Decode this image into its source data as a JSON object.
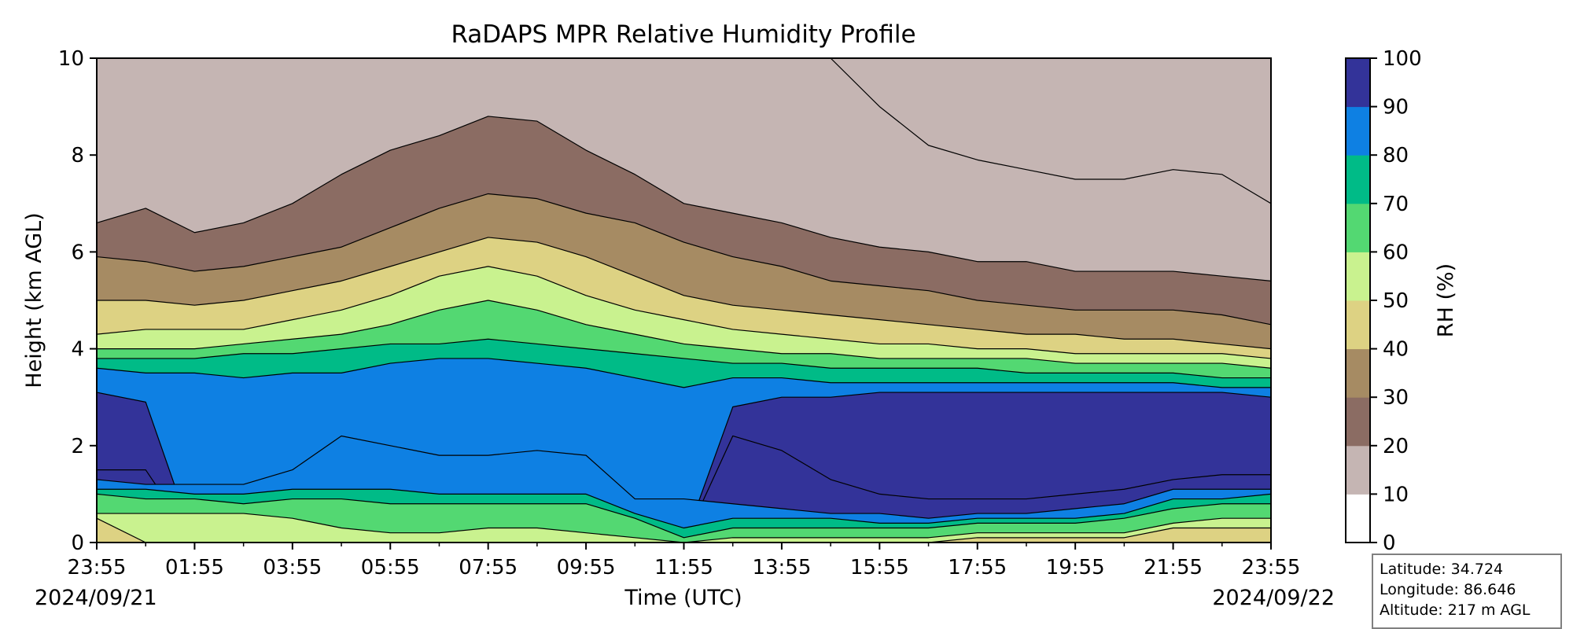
{
  "chart_data": {
    "type": "contourf",
    "title": "RaDAPS MPR Relative Humidity Profile",
    "xlabel": "Time (UTC)",
    "ylabel": "Height (km AGL)",
    "ylim": [
      0,
      10
    ],
    "xlim": [
      "2024-09-21 23:55",
      "2024-09-22 23:55"
    ],
    "x_ticks": [
      "23:55",
      "01:55",
      "03:55",
      "05:55",
      "07:55",
      "09:55",
      "11:55",
      "13:55",
      "15:55",
      "17:55",
      "19:55",
      "21:55",
      "23:55"
    ],
    "y_ticks": [
      "0",
      "2",
      "4",
      "6",
      "8",
      "10"
    ],
    "date_start": "2024/09/21",
    "date_end": "2024/09/22",
    "colorbar": {
      "label": "RH (%)",
      "ticks": [
        "0",
        "10",
        "20",
        "30",
        "40",
        "50",
        "60",
        "70",
        "80",
        "90",
        "100"
      ],
      "colors": [
        "#ffffff",
        "#c5b5b3",
        "#8b6c63",
        "#a68b63",
        "#ddd283",
        "#c9f28f",
        "#53d872",
        "#00bb87",
        "#0e80e3",
        "#333399"
      ]
    },
    "grid": false,
    "hours": [
      0,
      1,
      2,
      3,
      4,
      5,
      6,
      7,
      8,
      9,
      10,
      11,
      12,
      13,
      14,
      15,
      16,
      17,
      18,
      19,
      20,
      21,
      22,
      23,
      24
    ],
    "contour_heights_km": [
      {
        "level": 10,
        "heights": [
          10,
          10,
          10,
          10,
          10,
          10,
          10,
          10,
          10,
          10,
          10,
          10,
          10,
          10,
          10,
          10,
          9.0,
          8.2,
          7.9,
          7.7,
          7.5,
          7.5,
          7.7,
          7.6,
          7.0
        ]
      },
      {
        "level": 20,
        "heights": [
          6.6,
          6.9,
          6.4,
          6.6,
          7.0,
          7.6,
          8.1,
          8.4,
          8.8,
          8.7,
          8.1,
          7.6,
          7.0,
          6.8,
          6.6,
          6.3,
          6.1,
          6.0,
          5.8,
          5.8,
          5.6,
          5.6,
          5.6,
          5.5,
          5.4
        ]
      },
      {
        "level": 30,
        "heights": [
          5.9,
          5.8,
          5.6,
          5.7,
          5.9,
          6.1,
          6.5,
          6.9,
          7.2,
          7.1,
          6.8,
          6.6,
          6.2,
          5.9,
          5.7,
          5.4,
          5.3,
          5.2,
          5.0,
          4.9,
          4.8,
          4.8,
          4.8,
          4.7,
          4.5
        ]
      },
      {
        "level": 40,
        "heights": [
          5.0,
          5.0,
          4.9,
          5.0,
          5.2,
          5.4,
          5.7,
          6.0,
          6.3,
          6.2,
          5.9,
          5.5,
          5.1,
          4.9,
          4.8,
          4.7,
          4.6,
          4.5,
          4.4,
          4.3,
          4.3,
          4.2,
          4.2,
          4.1,
          4.0
        ]
      },
      {
        "level": 50,
        "heights": [
          4.3,
          4.4,
          4.4,
          4.4,
          4.6,
          4.8,
          5.1,
          5.5,
          5.7,
          5.5,
          5.1,
          4.8,
          4.6,
          4.4,
          4.3,
          4.2,
          4.1,
          4.1,
          4.0,
          4.0,
          3.9,
          3.9,
          3.9,
          3.9,
          3.8
        ]
      },
      {
        "level": 60,
        "heights": [
          4.0,
          4.0,
          4.0,
          4.1,
          4.2,
          4.3,
          4.5,
          4.8,
          5.0,
          4.8,
          4.5,
          4.3,
          4.1,
          4.0,
          3.9,
          3.9,
          3.8,
          3.8,
          3.8,
          3.8,
          3.7,
          3.7,
          3.7,
          3.7,
          3.6
        ]
      },
      {
        "level": 70,
        "heights": [
          3.8,
          3.8,
          3.8,
          3.9,
          3.9,
          4.0,
          4.1,
          4.1,
          4.2,
          4.1,
          4.0,
          3.9,
          3.8,
          3.7,
          3.7,
          3.6,
          3.6,
          3.6,
          3.6,
          3.5,
          3.5,
          3.5,
          3.5,
          3.4,
          3.4
        ]
      },
      {
        "level": 80,
        "heights": [
          3.6,
          3.5,
          3.5,
          3.4,
          3.5,
          3.5,
          3.7,
          3.8,
          3.8,
          3.7,
          3.6,
          3.4,
          3.2,
          3.4,
          3.4,
          3.3,
          3.3,
          3.3,
          3.3,
          3.3,
          3.3,
          3.3,
          3.3,
          3.2,
          3.2
        ]
      },
      {
        "level": 90,
        "heights": [
          3.1,
          2.9,
          0,
          0,
          0,
          0,
          0,
          0,
          0,
          0,
          0,
          0,
          0,
          2.8,
          3.0,
          3.0,
          3.1,
          3.1,
          3.1,
          3.1,
          3.1,
          3.1,
          3.1,
          3.1,
          3.0
        ]
      },
      {
        "level": 90,
        "heights": [
          1.5,
          1.5,
          0,
          0,
          0,
          0,
          0,
          0,
          0,
          0,
          0,
          0,
          0,
          2.2,
          1.9,
          1.3,
          1.0,
          0.9,
          0.9,
          0.9,
          1.0,
          1.1,
          1.3,
          1.4,
          1.4
        ]
      },
      {
        "level": 80,
        "heights": [
          1.3,
          1.2,
          1.2,
          1.2,
          1.5,
          2.2,
          2.0,
          1.8,
          1.8,
          1.9,
          1.8,
          0.9,
          0.9,
          0.8,
          0.7,
          0.6,
          0.6,
          0.5,
          0.6,
          0.6,
          0.7,
          0.8,
          1.1,
          1.1,
          1.1
        ]
      },
      {
        "level": 70,
        "heights": [
          1.1,
          1.1,
          1.0,
          1.0,
          1.1,
          1.1,
          1.1,
          1.0,
          1.0,
          1.0,
          1.0,
          0.6,
          0.3,
          0.5,
          0.5,
          0.5,
          0.4,
          0.4,
          0.5,
          0.5,
          0.5,
          0.6,
          0.9,
          0.9,
          1.0
        ]
      },
      {
        "level": 60,
        "heights": [
          1.0,
          0.9,
          0.9,
          0.8,
          0.9,
          0.9,
          0.8,
          0.8,
          0.8,
          0.8,
          0.8,
          0.5,
          0.1,
          0.3,
          0.3,
          0.3,
          0.3,
          0.3,
          0.4,
          0.4,
          0.4,
          0.5,
          0.7,
          0.8,
          0.8
        ]
      },
      {
        "level": 50,
        "heights": [
          0.6,
          0.6,
          0.6,
          0.6,
          0.5,
          0.3,
          0.2,
          0.2,
          0.3,
          0.3,
          0.2,
          0.1,
          0,
          0.1,
          0.1,
          0.1,
          0.1,
          0.1,
          0.2,
          0.2,
          0.2,
          0.2,
          0.4,
          0.5,
          0.5
        ]
      },
      {
        "level": 40,
        "heights": [
          0.5,
          0,
          0,
          0,
          0,
          0,
          0,
          0,
          0,
          0,
          0,
          0,
          0,
          0,
          0,
          0,
          0,
          0,
          0.1,
          0.1,
          0.1,
          0.1,
          0.3,
          0.3,
          0.3
        ]
      }
    ]
  },
  "station": {
    "latitude": "Latitude: 34.724",
    "longitude": "Longitude: 86.646",
    "altitude": "Altitude: 217 m AGL"
  }
}
